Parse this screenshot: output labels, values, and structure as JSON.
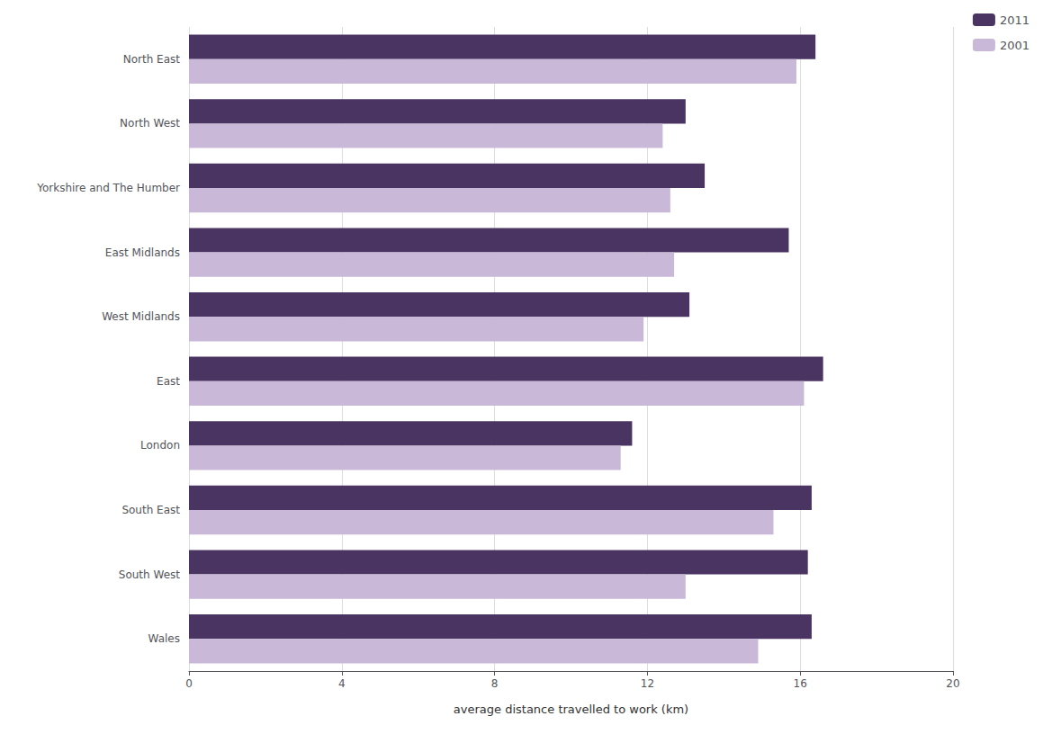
{
  "chart_data": {
    "type": "bar",
    "orientation": "horizontal",
    "categories": [
      "North East",
      "North West",
      "Yorkshire and The Humber",
      "East Midlands",
      "West Midlands",
      "East",
      "London",
      "South East",
      "South West",
      "Wales"
    ],
    "series": [
      {
        "name": "2011",
        "color": "#4a3562",
        "values": [
          16.4,
          13.0,
          13.5,
          15.7,
          13.1,
          16.6,
          11.6,
          16.3,
          16.2,
          16.3
        ]
      },
      {
        "name": "2001",
        "color": "#c9b8d8",
        "values": [
          15.9,
          12.4,
          12.6,
          12.7,
          11.9,
          16.1,
          11.3,
          15.3,
          13.0,
          14.9
        ]
      }
    ],
    "xlabel": "average distance travelled to work (km)",
    "xlim": [
      0,
      20
    ],
    "xticks": [
      0,
      4,
      8,
      12,
      16,
      20
    ],
    "grid": true,
    "legend": "upper right"
  }
}
